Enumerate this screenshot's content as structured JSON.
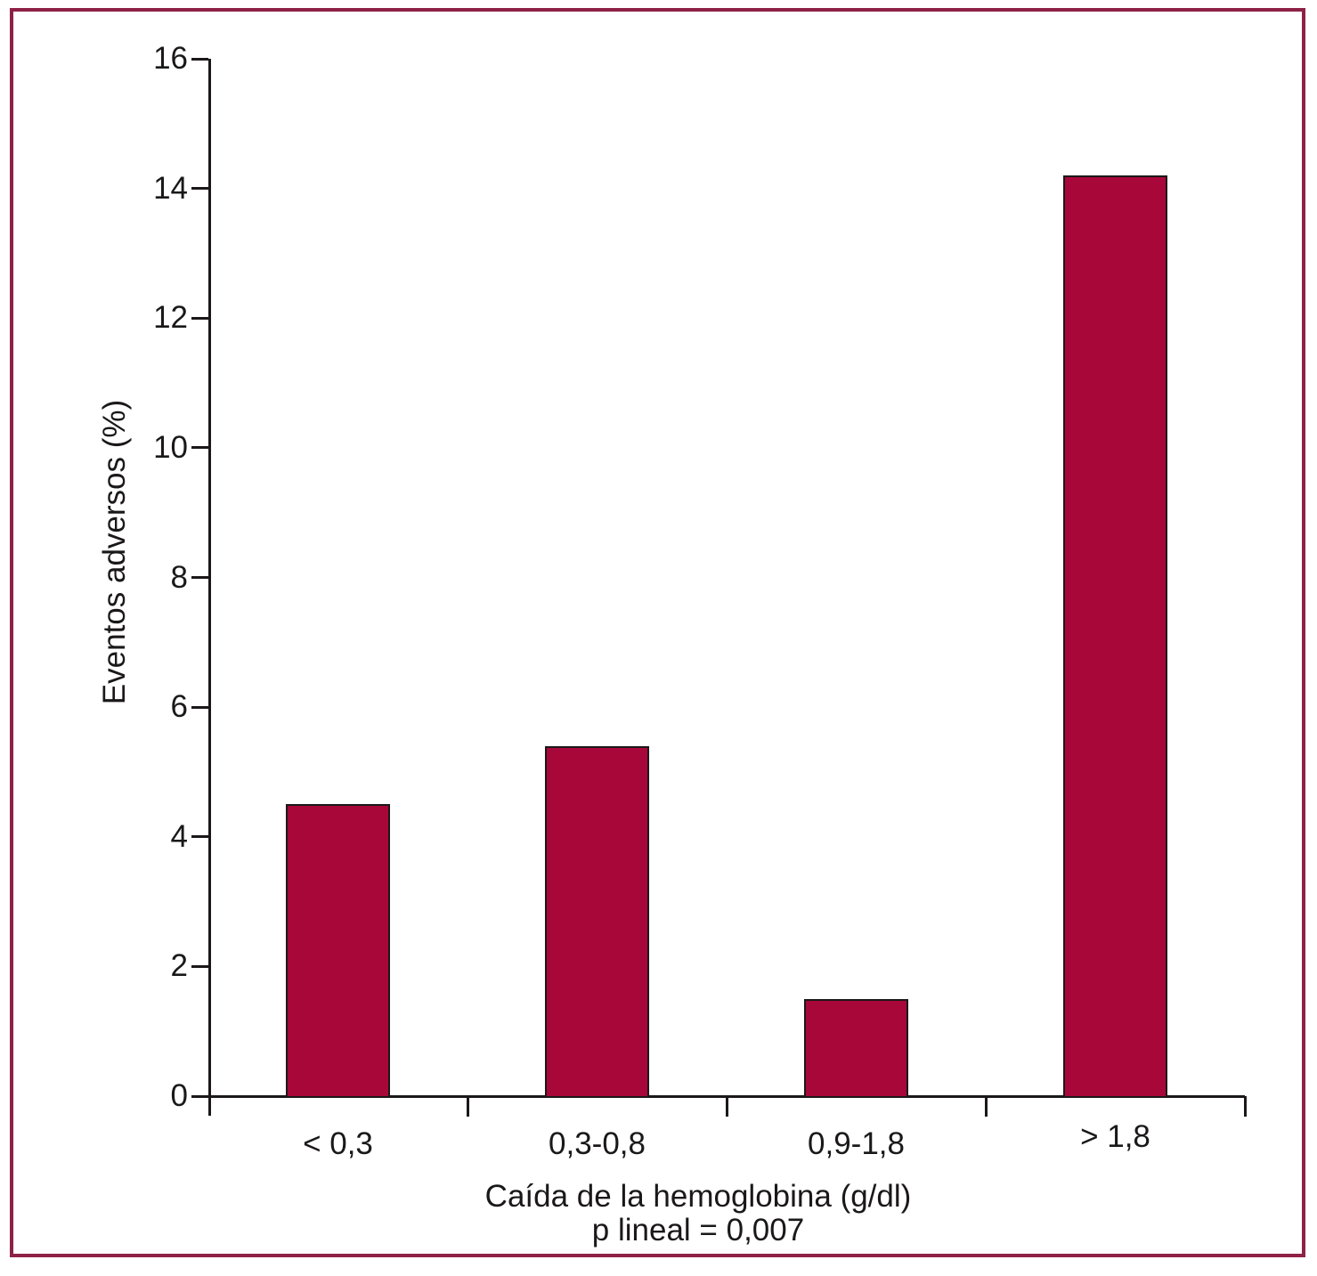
{
  "figure": {
    "frame_border_color": "#8E2145",
    "background_color": "#FFFFFF",
    "axis_color": "#1B1819",
    "text_color": "#1B1819"
  },
  "chart_data": {
    "type": "bar",
    "title": "",
    "categories": [
      "< 0,3",
      "0,3-0,8",
      "0,9-1,8",
      "> 1,8"
    ],
    "values": [
      4.5,
      5.4,
      1.5,
      14.2
    ],
    "series": [
      {
        "name": "Eventos adversos",
        "values": [
          4.5,
          5.4,
          1.5,
          14.2
        ]
      }
    ],
    "xlabel": "Caída de la hemoglobina (g/dl)",
    "xlabel_line2": "p lineal = 0,007",
    "ylabel": "Eventos adversos (%)",
    "ylim": [
      0,
      16
    ],
    "yticks": [
      0,
      2,
      4,
      6,
      8,
      10,
      12,
      14,
      16
    ],
    "grid": false,
    "legend_position": "none",
    "bar_color": "#A8073A",
    "bar_border_color": "#1B1819"
  }
}
